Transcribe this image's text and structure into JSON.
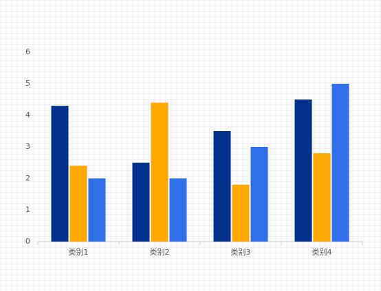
{
  "chart_data": {
    "type": "bar",
    "categories": [
      "类别1",
      "类别2",
      "类别3",
      "类别4"
    ],
    "series": [
      {
        "color": "#03328c",
        "values": [
          4.3,
          2.5,
          3.5,
          4.5
        ]
      },
      {
        "color": "#ffa800",
        "values": [
          2.4,
          4.4,
          1.8,
          2.8
        ]
      },
      {
        "color": "#2f6fe8",
        "values": [
          2,
          2,
          3,
          5
        ]
      }
    ],
    "ylim": [
      0,
      6
    ],
    "yticks": [
      0,
      1,
      2,
      3,
      4,
      5,
      6
    ],
    "grid": false
  }
}
